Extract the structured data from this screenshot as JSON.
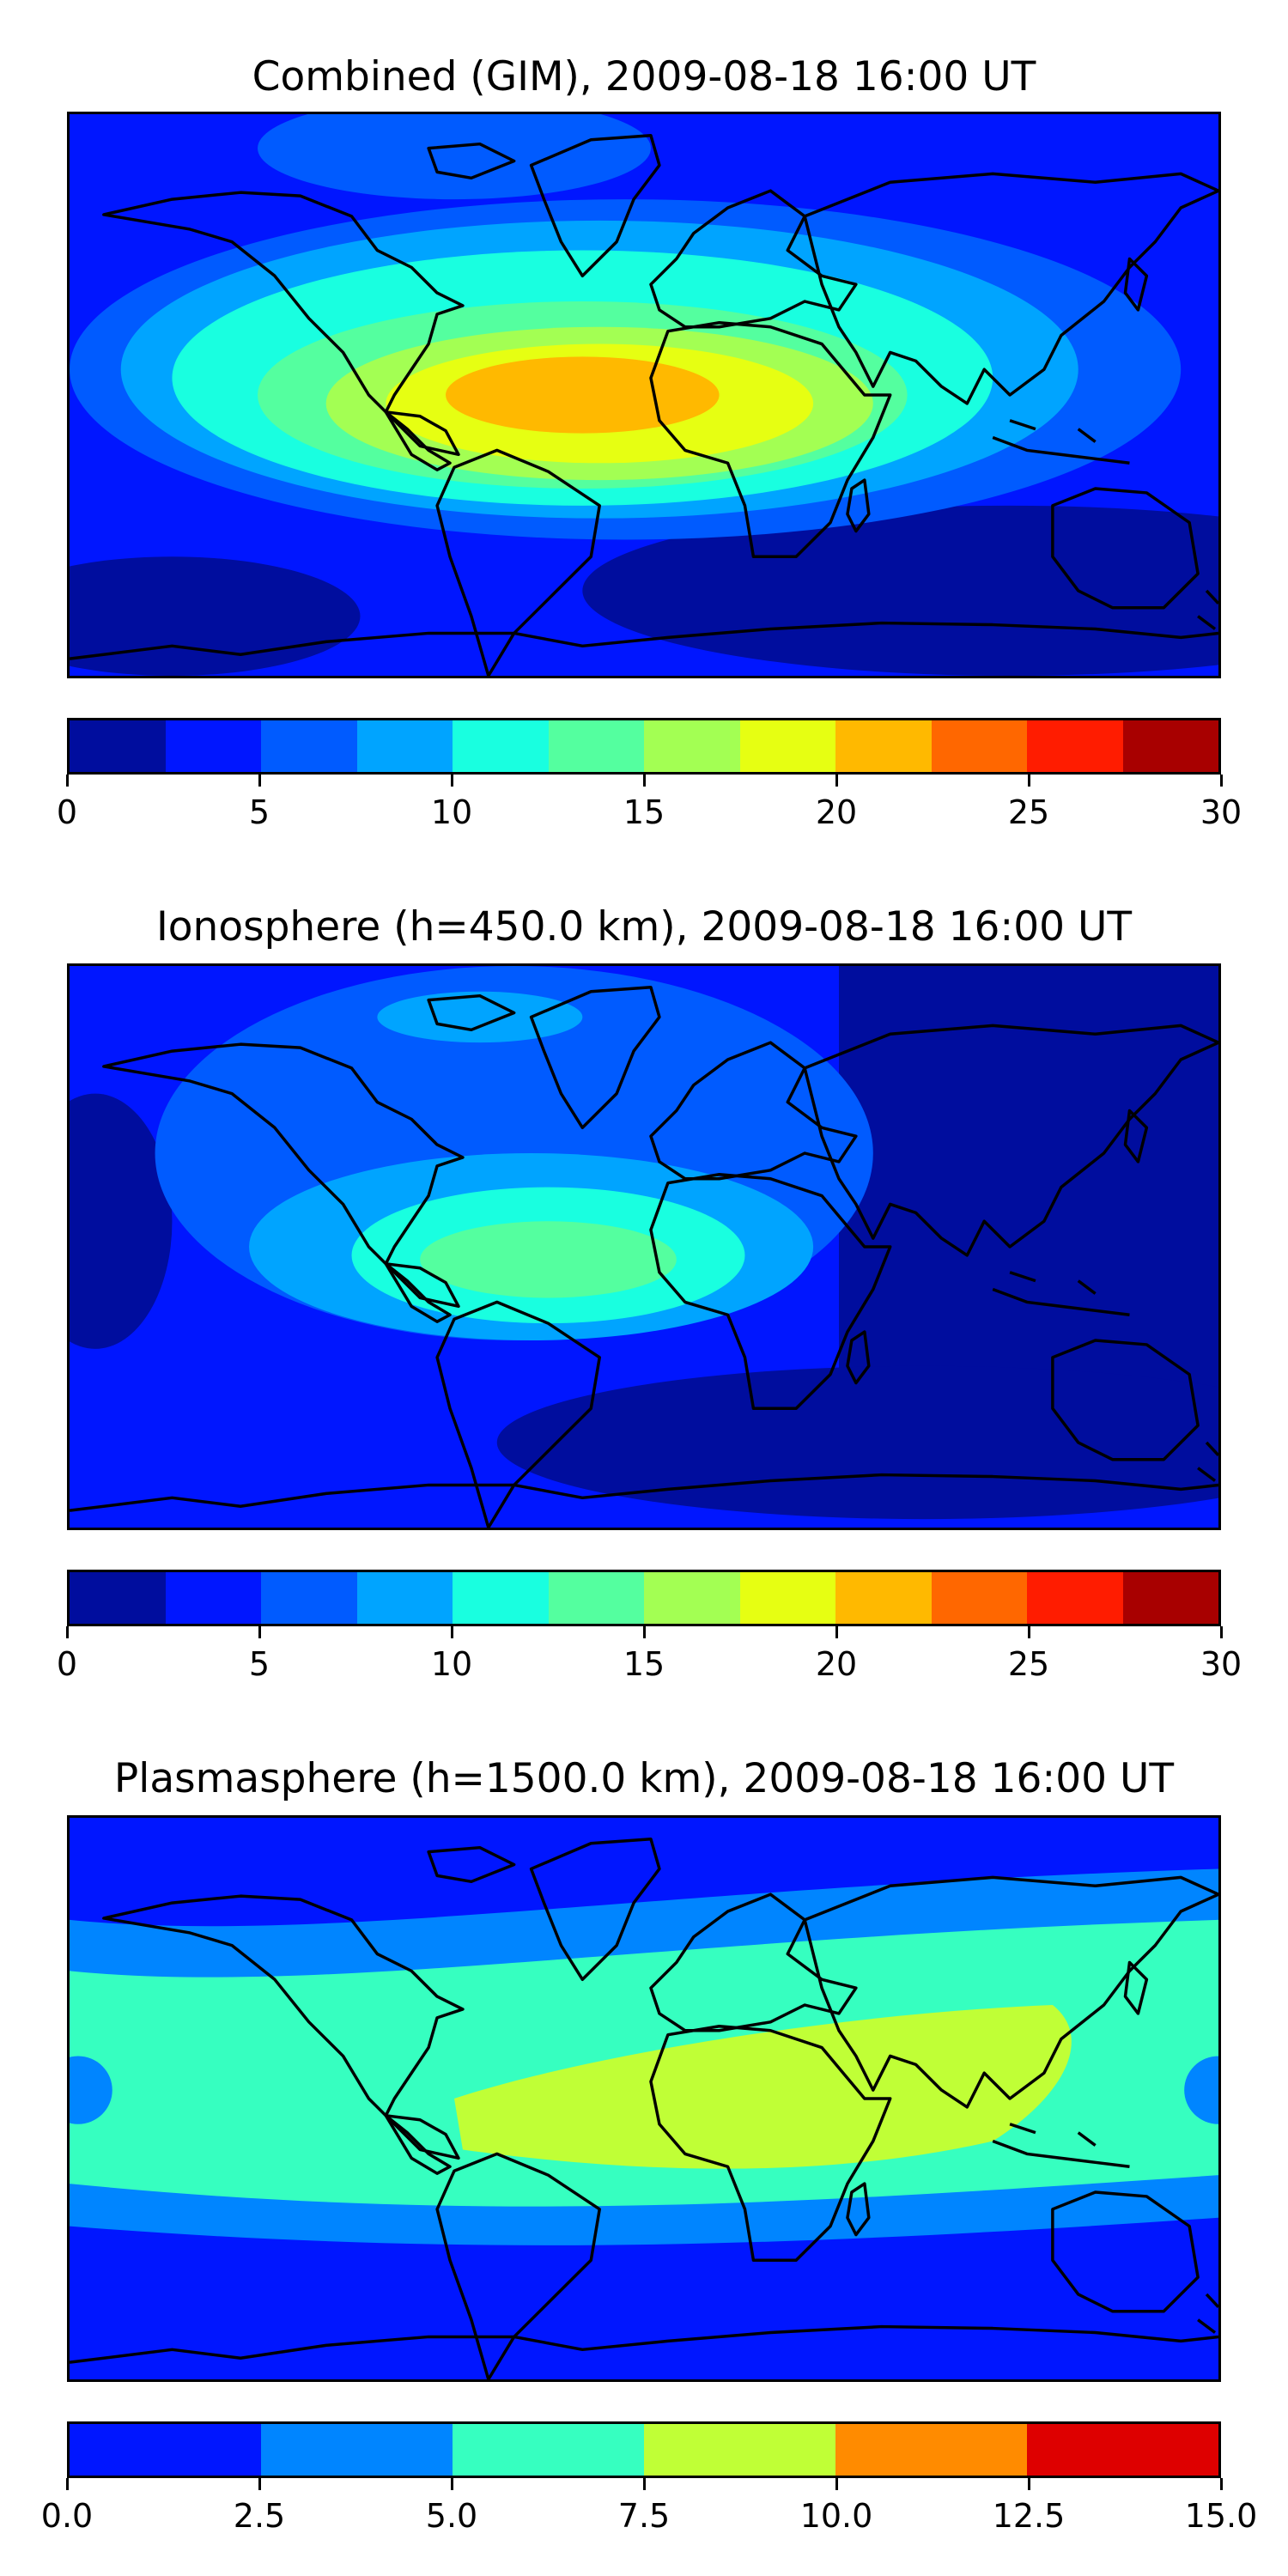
{
  "panels": [
    {
      "title": "Combined (GIM), 2009-08-18 16:00 UT",
      "colorbar": {
        "colors": [
          "#000d9e",
          "#0016ff",
          "#005bff",
          "#00a4ff",
          "#19ffe0",
          "#54ff9f",
          "#a3ff53",
          "#e6ff12",
          "#ffb900",
          "#ff6700",
          "#ff1c00",
          "#a80000"
        ],
        "ticks": [
          "0",
          "5",
          "10",
          "15",
          "20",
          "25",
          "30"
        ]
      }
    },
    {
      "title": "Ionosphere  (h=450.0 km), 2009-08-18 16:00 UT",
      "colorbar": {
        "colors": [
          "#000d9e",
          "#0016ff",
          "#005bff",
          "#00a4ff",
          "#19ffe0",
          "#54ff9f",
          "#a3ff53",
          "#e6ff12",
          "#ffb900",
          "#ff6700",
          "#ff1c00",
          "#a80000"
        ],
        "ticks": [
          "0",
          "5",
          "10",
          "15",
          "20",
          "25",
          "30"
        ]
      }
    },
    {
      "title": "Plasmasphere (h=1500.0 km), 2009-08-18 16:00 UT",
      "colorbar": {
        "colors": [
          "#0016ff",
          "#0085ff",
          "#36ffc0",
          "#c0ff36",
          "#ff8b00",
          "#de0000"
        ],
        "ticks": [
          "0.0",
          "2.5",
          "5.0",
          "7.5",
          "10.0",
          "12.5",
          "15.0"
        ]
      }
    }
  ],
  "chart_data": [
    {
      "type": "heatmap",
      "title": "Combined (GIM), 2009-08-18 16:00 UT",
      "levels": [
        0,
        2.5,
        5,
        7.5,
        10,
        12.5,
        15,
        17.5,
        20,
        22.5,
        25,
        27.5,
        30
      ],
      "colorbar_range": [
        0,
        30
      ],
      "colorbar_ticks": [
        0,
        5,
        10,
        15,
        20,
        25,
        30
      ],
      "map": "world equirectangular with coastlines",
      "peak_region": "tropical Atlantic / West Africa / Brazil, about 20-22.5",
      "background_value": "0-5 over high latitudes and the night side"
    },
    {
      "type": "heatmap",
      "title": "Ionosphere  (h=450.0 km), 2009-08-18 16:00 UT",
      "levels": [
        0,
        2.5,
        5,
        7.5,
        10,
        12.5,
        15,
        17.5,
        20,
        22.5,
        25,
        27.5,
        30
      ],
      "colorbar_range": [
        0,
        30
      ],
      "colorbar_ticks": [
        0,
        5,
        10,
        15,
        20,
        25,
        30
      ],
      "map": "world equirectangular with coastlines",
      "peak_region": "tropical Atlantic / Brazil, about 12.5-15",
      "background_value": "0-5"
    },
    {
      "type": "heatmap",
      "title": "Plasmasphere (h=1500.0 km), 2009-08-18 16:00 UT",
      "levels": [
        0,
        2.5,
        5,
        7.5,
        10,
        12.5,
        15
      ],
      "colorbar_range": [
        0,
        15
      ],
      "colorbar_ticks": [
        0,
        2.5,
        5,
        7.5,
        10,
        12.5,
        15
      ],
      "map": "world equirectangular with coastlines",
      "peak_region": "equatorial band Africa / South Asia, about 7.5-10",
      "background_value": "0-2.5 at high latitudes"
    }
  ]
}
